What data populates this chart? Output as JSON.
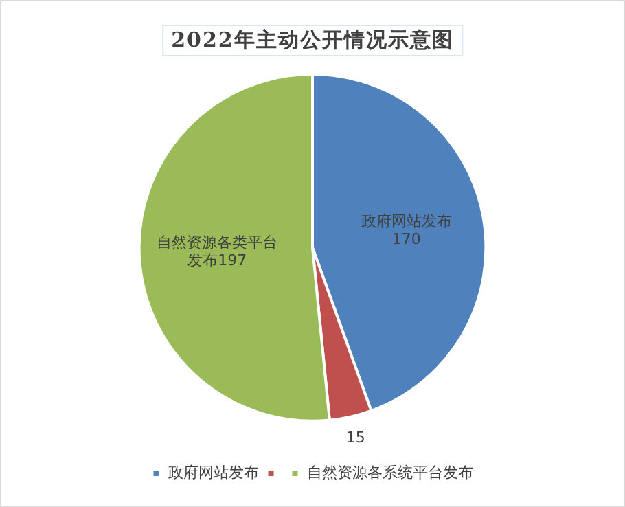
{
  "chart_data": {
    "type": "pie",
    "title": "2022年主动公开情况示意图",
    "categories": [
      "政府网站发布",
      null,
      "自然资源各系统平台发布"
    ],
    "values": [
      170,
      15,
      197
    ],
    "colors": [
      "#4f81bd",
      "#c0504d",
      "#9bbb59"
    ],
    "value_labels": [
      "政府网站发布\n170",
      "15",
      "自然资源各类平台发布197"
    ],
    "legend": "bottom"
  }
}
